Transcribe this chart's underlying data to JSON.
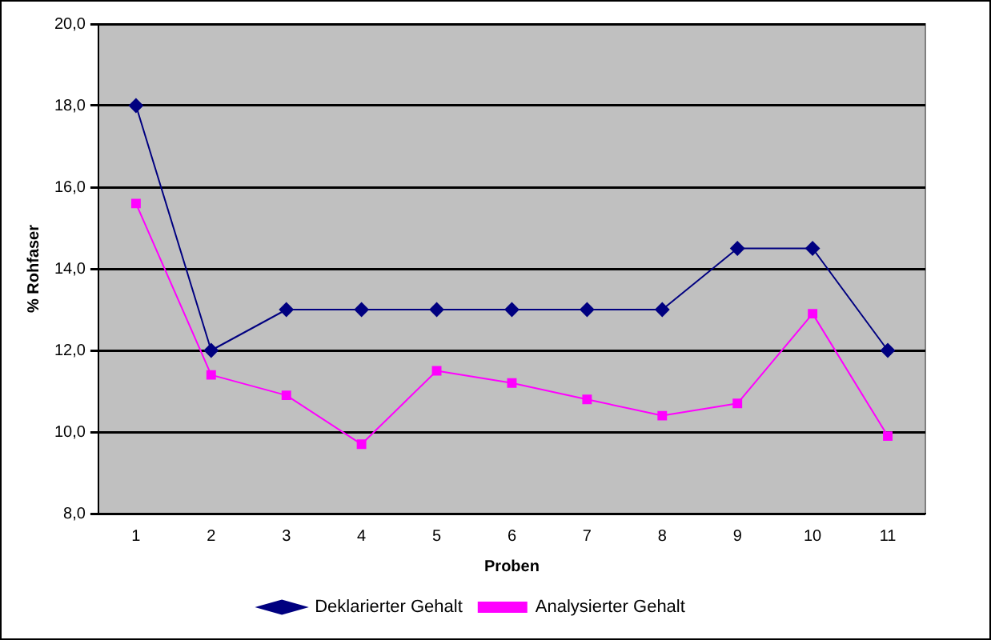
{
  "chart_data": {
    "type": "line",
    "xlabel": "Proben",
    "ylabel": "% Rohfaser",
    "categories": [
      "1",
      "2",
      "3",
      "4",
      "5",
      "6",
      "7",
      "8",
      "9",
      "10",
      "11"
    ],
    "series": [
      {
        "name": "Deklarierter Gehalt",
        "color": "#000080",
        "marker": "diamond",
        "values": [
          18,
          12,
          13,
          13,
          13,
          13,
          13,
          13,
          14.5,
          14.5,
          12
        ]
      },
      {
        "name": "Analysierter Gehalt",
        "color": "#ff00ff",
        "marker": "square",
        "values": [
          15.6,
          11.4,
          10.9,
          9.7,
          11.5,
          11.2,
          10.8,
          10.4,
          10.7,
          12.9,
          9.9
        ]
      }
    ],
    "ylim": [
      8,
      20
    ],
    "yticks": [
      {
        "value": 8,
        "label": "8,0"
      },
      {
        "value": 10,
        "label": "10,0"
      },
      {
        "value": 12,
        "label": "12,0"
      },
      {
        "value": 14,
        "label": "14,0"
      },
      {
        "value": 16,
        "label": "16,0"
      },
      {
        "value": 18,
        "label": "18,0"
      },
      {
        "value": 20,
        "label": "20,0"
      }
    ],
    "grid": "y",
    "legend": "bottom",
    "line_style": "solid"
  }
}
